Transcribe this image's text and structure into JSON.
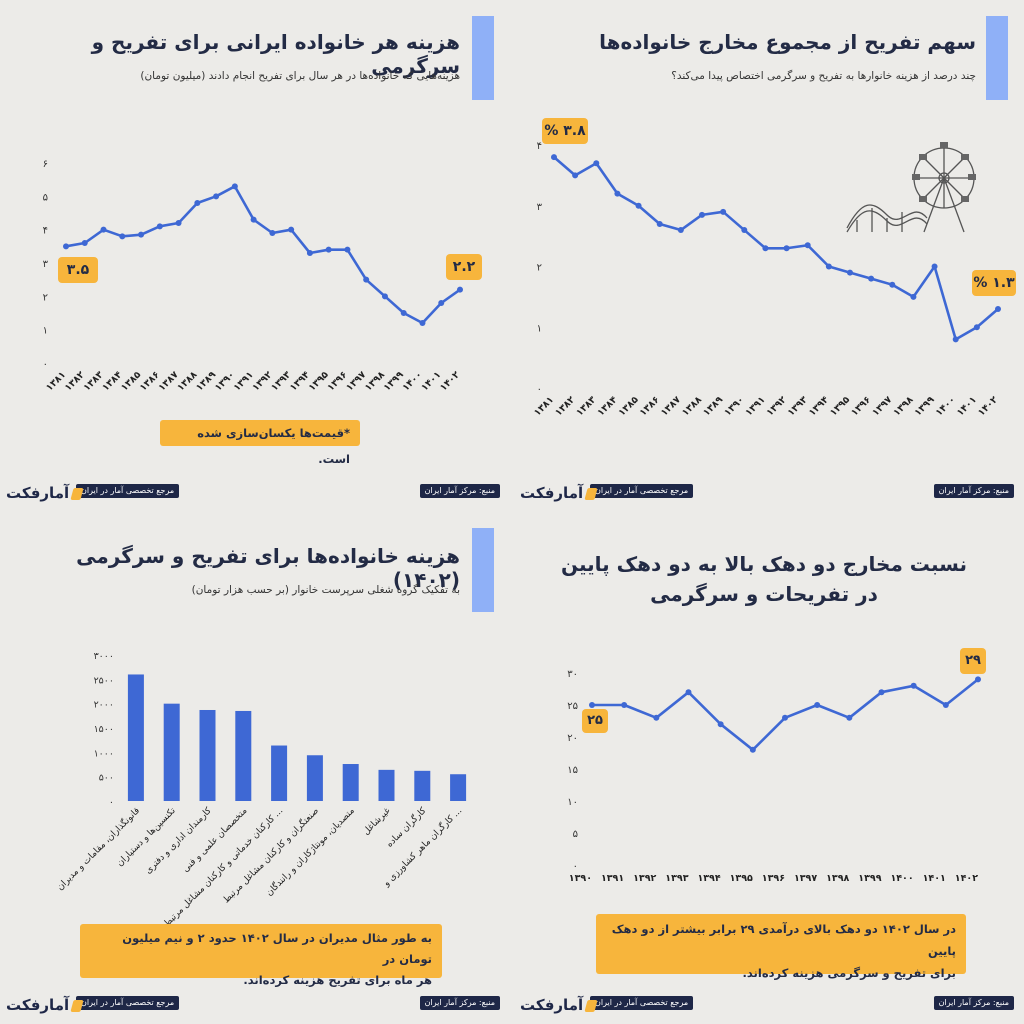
{
  "colors": {
    "line": "#3e68d4",
    "accent": "#f7b53c",
    "dark": "#1e2747",
    "panel_bar": "#8fb0f7"
  },
  "footer": {
    "source": "منبع: مرکز آمار ایران",
    "brand_tag": "مرجع تخصصی آمار در ایران",
    "logo": "آمارفکت"
  },
  "panels": {
    "share": {
      "title": "سهم تفریح از مجموع مخارج خانواده‌ها",
      "subtitle": "چند درصد از هزینه خانوارها به تفریح و سرگرمی اختصاص پیدا می‌کند؟",
      "callout_first": "۳.۸ %",
      "callout_last": "۱.۳ %",
      "icon": "ferris-wheel-icon"
    },
    "cost": {
      "title": "هزینه هر خانواده ایرانی برای تفریح و سرگرمی",
      "subtitle": "هزینه‌هایی که خانواده‌ها در هر سال برای تفریح انجام دادند (میلیون تومان)",
      "callout_first": "۳.۵",
      "callout_last": "۲.۲",
      "note": "*قیمت‌ها یکسان‌سازی شده است."
    },
    "ratio": {
      "title_line1": "نسبت مخارج دو دهک بالا به دو دهک پایین",
      "title_line2": "در تفریحات و سرگرمی",
      "callout_first": "۲۵",
      "callout_last": "۲۹",
      "note_line1": "در سال ۱۴۰۲ دو دهک بالای درآمدی ۲۹ برابر بیشتر از دو دهک پایین",
      "note_line2": "برای تفریح و سرگرمی هزینه کرده‌اند."
    },
    "occupation": {
      "title": "هزینه خانواده‌ها برای تفریح و سرگرمی (۱۴۰۲)",
      "subtitle": "به تفکیک گروه شغلی سرپرست خانوار (بر حسب هزار تومان)",
      "note_line1": "به طور مثال مدیران در سال ۱۴۰۲ حدود ۲ و نیم میلیون تومان در",
      "note_line2": "هر ماه برای تفریح هزینه کرده‌اند."
    }
  },
  "chart_data": [
    {
      "id": "share",
      "type": "line",
      "title": "سهم تفریح از مجموع مخارج خانواده‌ها",
      "x": [
        "۱۳۸۱",
        "۱۳۸۲",
        "۱۳۸۳",
        "۱۳۸۴",
        "۱۳۸۵",
        "۱۳۸۶",
        "۱۳۸۷",
        "۱۳۸۸",
        "۱۳۸۹",
        "۱۳۹۰",
        "۱۳۹۱",
        "۱۳۹۲",
        "۱۳۹۳",
        "۱۳۹۴",
        "۱۳۹۵",
        "۱۳۹۶",
        "۱۳۹۷",
        "۱۳۹۸",
        "۱۳۹۹",
        "۱۴۰۰",
        "۱۴۰۱",
        "۱۴۰۲"
      ],
      "values": [
        3.8,
        3.5,
        3.7,
        3.2,
        3.0,
        2.7,
        2.6,
        2.85,
        2.9,
        2.6,
        2.3,
        2.3,
        2.35,
        2.0,
        1.9,
        1.8,
        1.7,
        1.5,
        2.0,
        0.8,
        1.0,
        1.3
      ],
      "ylim": [
        0,
        4
      ],
      "yticks": [
        "۰",
        "۱",
        "۲",
        "۳",
        "۴"
      ],
      "grid": false
    },
    {
      "id": "cost",
      "type": "line",
      "title": "هزینه هر خانواده ایرانی برای تفریح و سرگرمی",
      "x": [
        "۱۳۸۱",
        "۱۳۸۲",
        "۱۳۸۳",
        "۱۳۸۴",
        "۱۳۸۵",
        "۱۳۸۶",
        "۱۳۸۷",
        "۱۳۸۸",
        "۱۳۸۹",
        "۱۳۹۰",
        "۱۳۹۱",
        "۱۳۹۲",
        "۱۳۹۳",
        "۱۳۹۴",
        "۱۳۹۵",
        "۱۳۹۶",
        "۱۳۹۷",
        "۱۳۹۸",
        "۱۳۹۹",
        "۱۴۰۰",
        "۱۴۰۱",
        "۱۴۰۲"
      ],
      "values": [
        3.5,
        3.6,
        4.0,
        3.8,
        3.85,
        4.1,
        4.2,
        4.8,
        5.0,
        5.3,
        4.3,
        3.9,
        4.0,
        3.3,
        3.4,
        3.4,
        2.5,
        2.0,
        1.5,
        1.2,
        1.8,
        2.2
      ],
      "ylim": [
        0,
        6
      ],
      "yticks": [
        "۰",
        "۱",
        "۲",
        "۳",
        "۴",
        "۵",
        "۶"
      ],
      "grid": false
    },
    {
      "id": "ratio",
      "type": "line",
      "title": "نسبت مخارج دو دهک بالا به دو دهک پایین در تفریحات و سرگرمی",
      "x": [
        "۱۳۹۰",
        "۱۳۹۱",
        "۱۳۹۲",
        "۱۳۹۳",
        "۱۳۹۴",
        "۱۳۹۵",
        "۱۳۹۶",
        "۱۳۹۷",
        "۱۳۹۸",
        "۱۳۹۹",
        "۱۴۰۰",
        "۱۴۰۱",
        "۱۴۰۲"
      ],
      "values": [
        25,
        25,
        23,
        27,
        22,
        18,
        23,
        25,
        23,
        27,
        28,
        25,
        29
      ],
      "ylim": [
        0,
        30
      ],
      "yticks": [
        "۰",
        "۵",
        "۱۰",
        "۱۵",
        "۲۰",
        "۲۵",
        "۳۰"
      ],
      "grid": false
    },
    {
      "id": "occupation",
      "type": "bar",
      "title": "هزینه خانواده‌ها برای تفریح و سرگرمی (۱۴۰۲)",
      "categories": [
        "قانونگذاران، مقامات و مدیران",
        "تکنسین‌ها و دستیاران",
        "کارمندان اداری و دفتری",
        "متخصصان علمی و فنی",
        "کارکنان خدماتی و کارکنان مشاغل مرتبط با ...",
        "صنعتگران و کارکنان مشاغل مرتبط",
        "متصدیان، مونتاژکاران و رانندگان",
        "غیرشاغل",
        "کارگران ساده",
        "کارگران ماهر کشاورزی و ..."
      ],
      "values": [
        2600,
        2000,
        1870,
        1850,
        1140,
        940,
        760,
        640,
        620,
        550
      ],
      "ylim": [
        0,
        3000
      ],
      "yticks": [
        "۰",
        "۵۰۰",
        "۱۰۰۰",
        "۱۵۰۰",
        "۲۰۰۰",
        "۲۵۰۰",
        "۳۰۰۰"
      ],
      "grid": false
    }
  ]
}
